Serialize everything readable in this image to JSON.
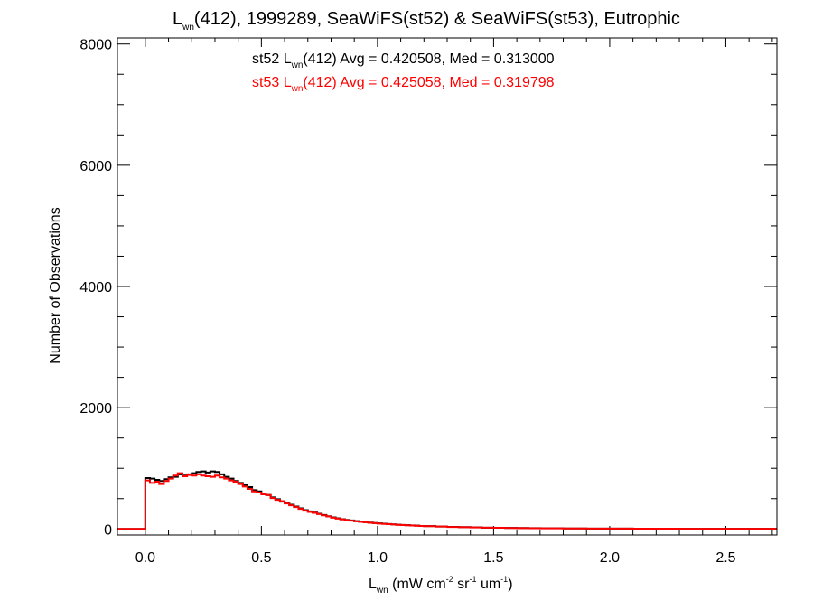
{
  "chart_data": {
    "type": "histogram",
    "title": {
      "base": "L",
      "sub": "wn",
      "rest": "(412), 1999289, SeaWiFS(st52) & SeaWiFS(st53), Eutrophic"
    },
    "xlabel": {
      "base": "L",
      "sub": "wn",
      "part1": " (mW cm",
      "sup1": "-2",
      "part2": " sr",
      "sup2": "-1",
      "part3": " um",
      "sup3": "-1",
      "part4": ")"
    },
    "ylabel": "Number of Observations",
    "xlim": [
      -0.12,
      2.72
    ],
    "ylim": [
      -100,
      8100
    ],
    "x_ticks": [
      {
        "value": 0.0,
        "label": "0.0"
      },
      {
        "value": 0.5,
        "label": "0.5"
      },
      {
        "value": 1.0,
        "label": "1.0"
      },
      {
        "value": 1.5,
        "label": "1.5"
      },
      {
        "value": 2.0,
        "label": "2.0"
      },
      {
        "value": 2.5,
        "label": "2.5"
      }
    ],
    "y_ticks": [
      {
        "value": 0,
        "label": "0"
      },
      {
        "value": 2000,
        "label": "2000"
      },
      {
        "value": 4000,
        "label": "4000"
      },
      {
        "value": 6000,
        "label": "6000"
      },
      {
        "value": 8000,
        "label": "8000"
      }
    ],
    "bin_width": 0.02,
    "annotations": [
      {
        "color": "#000000",
        "pre": "st52 L",
        "sub": "wn",
        "post": "(412) Avg = 0.420508, Med = 0.313000"
      },
      {
        "color": "#ff0000",
        "pre": "st53 L",
        "sub": "wn",
        "post": "(412) Avg = 0.425058, Med = 0.319798"
      }
    ],
    "series": [
      {
        "color": "#000000",
        "bins": [
          {
            "x": 0.0,
            "y": 840
          },
          {
            "x": 0.02,
            "y": 830
          },
          {
            "x": 0.04,
            "y": 810
          },
          {
            "x": 0.06,
            "y": 790
          },
          {
            "x": 0.08,
            "y": 820
          },
          {
            "x": 0.1,
            "y": 850
          },
          {
            "x": 0.12,
            "y": 860
          },
          {
            "x": 0.14,
            "y": 900
          },
          {
            "x": 0.16,
            "y": 880
          },
          {
            "x": 0.18,
            "y": 900
          },
          {
            "x": 0.2,
            "y": 920
          },
          {
            "x": 0.22,
            "y": 940
          },
          {
            "x": 0.24,
            "y": 950
          },
          {
            "x": 0.26,
            "y": 930
          },
          {
            "x": 0.28,
            "y": 950
          },
          {
            "x": 0.3,
            "y": 940
          },
          {
            "x": 0.32,
            "y": 900
          },
          {
            "x": 0.34,
            "y": 860
          },
          {
            "x": 0.36,
            "y": 830
          },
          {
            "x": 0.38,
            "y": 790
          },
          {
            "x": 0.4,
            "y": 760
          },
          {
            "x": 0.42,
            "y": 720
          },
          {
            "x": 0.44,
            "y": 690
          },
          {
            "x": 0.46,
            "y": 640
          },
          {
            "x": 0.48,
            "y": 620
          },
          {
            "x": 0.5,
            "y": 580
          },
          {
            "x": 0.52,
            "y": 560
          },
          {
            "x": 0.54,
            "y": 520
          },
          {
            "x": 0.56,
            "y": 490
          },
          {
            "x": 0.58,
            "y": 450
          },
          {
            "x": 0.6,
            "y": 430
          },
          {
            "x": 0.62,
            "y": 400
          },
          {
            "x": 0.64,
            "y": 370
          },
          {
            "x": 0.66,
            "y": 340
          },
          {
            "x": 0.68,
            "y": 310
          },
          {
            "x": 0.7,
            "y": 290
          },
          {
            "x": 0.72,
            "y": 270
          },
          {
            "x": 0.74,
            "y": 250
          },
          {
            "x": 0.76,
            "y": 230
          },
          {
            "x": 0.78,
            "y": 210
          },
          {
            "x": 0.8,
            "y": 190
          },
          {
            "x": 0.82,
            "y": 175
          },
          {
            "x": 0.84,
            "y": 160
          },
          {
            "x": 0.86,
            "y": 150
          },
          {
            "x": 0.88,
            "y": 140
          },
          {
            "x": 0.9,
            "y": 130
          },
          {
            "x": 0.92,
            "y": 120
          },
          {
            "x": 0.94,
            "y": 112
          },
          {
            "x": 0.96,
            "y": 105
          },
          {
            "x": 0.98,
            "y": 98
          },
          {
            "x": 1.0,
            "y": 92
          },
          {
            "x": 1.02,
            "y": 86
          },
          {
            "x": 1.04,
            "y": 80
          },
          {
            "x": 1.06,
            "y": 75
          },
          {
            "x": 1.08,
            "y": 70
          },
          {
            "x": 1.1,
            "y": 66
          },
          {
            "x": 1.12,
            "y": 62
          },
          {
            "x": 1.14,
            "y": 58
          },
          {
            "x": 1.16,
            "y": 54
          },
          {
            "x": 1.18,
            "y": 50
          },
          {
            "x": 1.2,
            "y": 47
          },
          {
            "x": 1.25,
            "y": 40
          },
          {
            "x": 1.3,
            "y": 34
          },
          {
            "x": 1.35,
            "y": 30
          },
          {
            "x": 1.4,
            "y": 26
          },
          {
            "x": 1.45,
            "y": 22
          },
          {
            "x": 1.5,
            "y": 20
          },
          {
            "x": 1.55,
            "y": 17
          },
          {
            "x": 1.6,
            "y": 15
          },
          {
            "x": 1.65,
            "y": 13
          },
          {
            "x": 1.7,
            "y": 11
          },
          {
            "x": 1.8,
            "y": 9
          },
          {
            "x": 1.9,
            "y": 7
          },
          {
            "x": 2.0,
            "y": 6
          },
          {
            "x": 2.1,
            "y": 5
          },
          {
            "x": 2.2,
            "y": 4
          },
          {
            "x": 2.3,
            "y": 3
          },
          {
            "x": 2.4,
            "y": 3
          },
          {
            "x": 2.5,
            "y": 2
          },
          {
            "x": 2.6,
            "y": 2
          },
          {
            "x": 2.7,
            "y": 2
          }
        ]
      },
      {
        "color": "#ff0000",
        "bins": [
          {
            "x": 0.0,
            "y": 800
          },
          {
            "x": 0.02,
            "y": 760
          },
          {
            "x": 0.04,
            "y": 780
          },
          {
            "x": 0.06,
            "y": 740
          },
          {
            "x": 0.08,
            "y": 790
          },
          {
            "x": 0.1,
            "y": 830
          },
          {
            "x": 0.12,
            "y": 880
          },
          {
            "x": 0.14,
            "y": 920
          },
          {
            "x": 0.16,
            "y": 870
          },
          {
            "x": 0.18,
            "y": 890
          },
          {
            "x": 0.2,
            "y": 880
          },
          {
            "x": 0.22,
            "y": 900
          },
          {
            "x": 0.24,
            "y": 880
          },
          {
            "x": 0.26,
            "y": 870
          },
          {
            "x": 0.28,
            "y": 860
          },
          {
            "x": 0.3,
            "y": 880
          },
          {
            "x": 0.32,
            "y": 850
          },
          {
            "x": 0.34,
            "y": 830
          },
          {
            "x": 0.36,
            "y": 800
          },
          {
            "x": 0.38,
            "y": 780
          },
          {
            "x": 0.4,
            "y": 740
          },
          {
            "x": 0.42,
            "y": 700
          },
          {
            "x": 0.44,
            "y": 660
          },
          {
            "x": 0.46,
            "y": 620
          },
          {
            "x": 0.48,
            "y": 600
          },
          {
            "x": 0.5,
            "y": 570
          },
          {
            "x": 0.52,
            "y": 560
          },
          {
            "x": 0.54,
            "y": 510
          },
          {
            "x": 0.56,
            "y": 480
          },
          {
            "x": 0.58,
            "y": 460
          },
          {
            "x": 0.6,
            "y": 420
          },
          {
            "x": 0.62,
            "y": 390
          },
          {
            "x": 0.64,
            "y": 360
          },
          {
            "x": 0.66,
            "y": 330
          },
          {
            "x": 0.68,
            "y": 300
          },
          {
            "x": 0.7,
            "y": 280
          },
          {
            "x": 0.72,
            "y": 265
          },
          {
            "x": 0.74,
            "y": 245
          },
          {
            "x": 0.76,
            "y": 225
          },
          {
            "x": 0.78,
            "y": 205
          },
          {
            "x": 0.8,
            "y": 185
          },
          {
            "x": 0.82,
            "y": 170
          },
          {
            "x": 0.84,
            "y": 158
          },
          {
            "x": 0.86,
            "y": 146
          },
          {
            "x": 0.88,
            "y": 136
          },
          {
            "x": 0.9,
            "y": 126
          },
          {
            "x": 0.92,
            "y": 118
          },
          {
            "x": 0.94,
            "y": 110
          },
          {
            "x": 0.96,
            "y": 102
          },
          {
            "x": 0.98,
            "y": 95
          },
          {
            "x": 1.0,
            "y": 89
          },
          {
            "x": 1.02,
            "y": 83
          },
          {
            "x": 1.04,
            "y": 78
          },
          {
            "x": 1.06,
            "y": 73
          },
          {
            "x": 1.08,
            "y": 68
          },
          {
            "x": 1.1,
            "y": 64
          },
          {
            "x": 1.12,
            "y": 60
          },
          {
            "x": 1.14,
            "y": 56
          },
          {
            "x": 1.16,
            "y": 52
          },
          {
            "x": 1.18,
            "y": 49
          },
          {
            "x": 1.2,
            "y": 46
          },
          {
            "x": 1.25,
            "y": 39
          },
          {
            "x": 1.3,
            "y": 33
          },
          {
            "x": 1.35,
            "y": 29
          },
          {
            "x": 1.4,
            "y": 25
          },
          {
            "x": 1.45,
            "y": 21
          },
          {
            "x": 1.5,
            "y": 19
          },
          {
            "x": 1.55,
            "y": 16
          },
          {
            "x": 1.6,
            "y": 14
          },
          {
            "x": 1.65,
            "y": 12
          },
          {
            "x": 1.7,
            "y": 10
          },
          {
            "x": 1.8,
            "y": 8
          },
          {
            "x": 1.9,
            "y": 7
          },
          {
            "x": 2.0,
            "y": 6
          },
          {
            "x": 2.1,
            "y": 5
          },
          {
            "x": 2.2,
            "y": 4
          },
          {
            "x": 2.3,
            "y": 3
          },
          {
            "x": 2.4,
            "y": 3
          },
          {
            "x": 2.5,
            "y": 2
          },
          {
            "x": 2.6,
            "y": 2
          },
          {
            "x": 2.7,
            "y": 2
          }
        ]
      }
    ]
  }
}
